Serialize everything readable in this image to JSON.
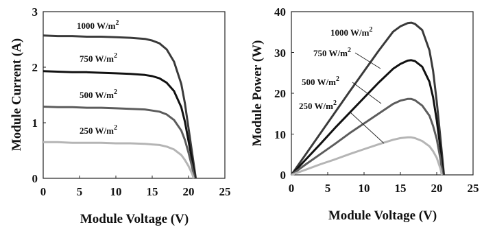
{
  "chart_data": [
    {
      "type": "line",
      "xlabel": "Module Voltage (V)",
      "ylabel": "Module Current (A)",
      "xlim": [
        0,
        25
      ],
      "ylim": [
        0,
        3
      ],
      "xticks": [
        0,
        5,
        10,
        15,
        20,
        25
      ],
      "yticks": [
        0,
        1,
        2,
        3
      ],
      "grid": false,
      "legend": "none",
      "series": [
        {
          "name": "1000 W/m2",
          "color": "#3a3a3a",
          "x": [
            0,
            2,
            4,
            6,
            8,
            10,
            12,
            14,
            15,
            16,
            17,
            18,
            19,
            19.5,
            20,
            20.5,
            21
          ],
          "y": [
            2.57,
            2.56,
            2.56,
            2.55,
            2.55,
            2.54,
            2.53,
            2.51,
            2.48,
            2.43,
            2.32,
            2.1,
            1.7,
            1.35,
            0.9,
            0.45,
            0
          ]
        },
        {
          "name": "750 W/m2",
          "color": "#111111",
          "x": [
            0,
            2,
            4,
            6,
            8,
            10,
            12,
            14,
            15,
            16,
            17,
            18,
            19,
            19.5,
            20,
            20.5,
            20.9
          ],
          "y": [
            1.93,
            1.92,
            1.91,
            1.91,
            1.9,
            1.89,
            1.88,
            1.86,
            1.84,
            1.8,
            1.72,
            1.57,
            1.28,
            1.02,
            0.67,
            0.32,
            0
          ]
        },
        {
          "name": "500 W/m2",
          "color": "#5c5c5c",
          "x": [
            0,
            2,
            4,
            6,
            8,
            10,
            12,
            14,
            15,
            16,
            17,
            18,
            19,
            19.5,
            20,
            20.5,
            20.8
          ],
          "y": [
            1.29,
            1.28,
            1.28,
            1.27,
            1.27,
            1.26,
            1.25,
            1.24,
            1.22,
            1.2,
            1.15,
            1.05,
            0.86,
            0.69,
            0.46,
            0.2,
            0
          ]
        },
        {
          "name": "250 W/m2",
          "color": "#b5b5b5",
          "x": [
            0,
            2,
            4,
            6,
            8,
            10,
            12,
            14,
            15,
            16,
            17,
            18,
            19,
            19.5,
            20,
            20.5,
            20.7
          ],
          "y": [
            0.65,
            0.65,
            0.64,
            0.64,
            0.64,
            0.63,
            0.63,
            0.62,
            0.61,
            0.6,
            0.57,
            0.52,
            0.42,
            0.33,
            0.22,
            0.08,
            0
          ]
        }
      ],
      "series_labels": [
        "1000 W/m",
        "750 W/m",
        "500 W/m",
        "250 W/m"
      ],
      "superscript": "2"
    },
    {
      "type": "line",
      "xlabel": "Module Voltage (V)",
      "ylabel": "Module Power (W)",
      "xlim": [
        0,
        25
      ],
      "ylim": [
        0,
        40
      ],
      "xticks": [
        0,
        5,
        10,
        15,
        20,
        25
      ],
      "yticks": [
        0,
        10,
        20,
        30,
        40
      ],
      "grid": false,
      "legend": "none",
      "series": [
        {
          "name": "1000 W/m2",
          "color": "#3a3a3a",
          "x": [
            0,
            2,
            4,
            6,
            8,
            10,
            12,
            14,
            15,
            16,
            16.5,
            17,
            18,
            19,
            19.5,
            20,
            20.5,
            21
          ],
          "y": [
            0,
            5.1,
            10.2,
            15.3,
            20.4,
            25.4,
            30.4,
            35.1,
            36.4,
            37.2,
            37.3,
            37.0,
            35.5,
            30.5,
            25.5,
            18.0,
            9.2,
            0
          ]
        },
        {
          "name": "750 W/m2",
          "color": "#111111",
          "x": [
            0,
            2,
            4,
            6,
            8,
            10,
            12,
            14,
            15,
            16,
            16.5,
            17,
            18,
            19,
            19.5,
            20,
            20.5,
            20.9
          ],
          "y": [
            0,
            3.8,
            7.6,
            11.5,
            15.2,
            18.9,
            22.6,
            26.0,
            27.2,
            28.0,
            28.1,
            27.9,
            26.5,
            22.8,
            19.0,
            13.4,
            6.6,
            0
          ]
        },
        {
          "name": "500 W/m2",
          "color": "#5c5c5c",
          "x": [
            0,
            2,
            4,
            6,
            8,
            10,
            12,
            14,
            15,
            16,
            16.5,
            17,
            18,
            19,
            19.5,
            20,
            20.5,
            20.8
          ],
          "y": [
            0,
            2.6,
            5.1,
            7.6,
            10.2,
            12.6,
            15.0,
            17.4,
            18.2,
            18.6,
            18.6,
            18.3,
            17.0,
            14.5,
            12.0,
            8.8,
            4.0,
            0
          ]
        },
        {
          "name": "250 W/m2",
          "color": "#b5b5b5",
          "x": [
            0,
            2,
            4,
            6,
            8,
            10,
            12,
            14,
            15,
            16,
            16.5,
            17,
            18,
            19,
            19.5,
            20,
            20.5,
            20.7
          ],
          "y": [
            0,
            1.3,
            2.6,
            3.8,
            5.1,
            6.3,
            7.5,
            8.6,
            9.0,
            9.2,
            9.2,
            9.0,
            8.3,
            7.0,
            5.8,
            4.2,
            1.6,
            0
          ]
        }
      ],
      "series_labels": [
        "1000 W/m",
        "750 W/m",
        "500 W/m",
        "250 W/m"
      ],
      "superscript": "2"
    }
  ]
}
